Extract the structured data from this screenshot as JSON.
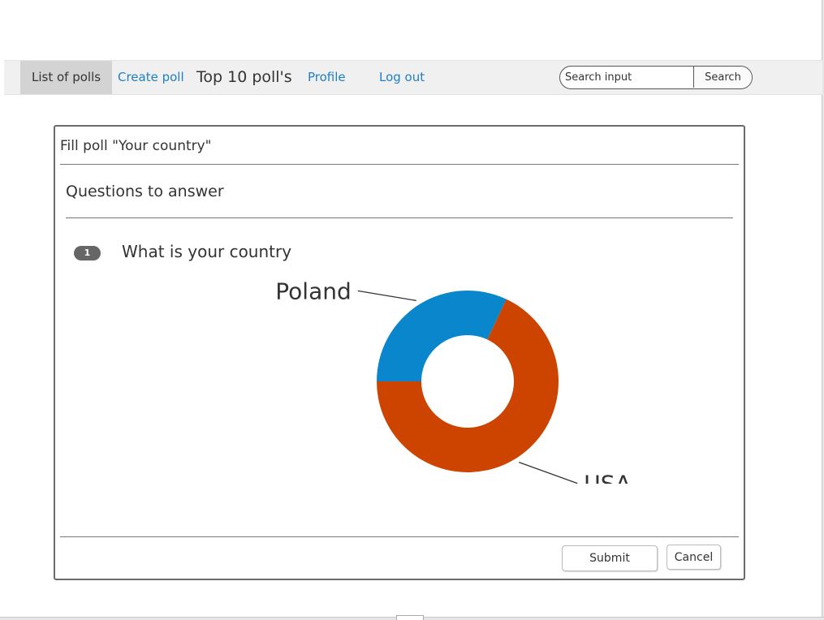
{
  "nav": {
    "items": [
      {
        "label": "List of polls",
        "state": "active"
      },
      {
        "label": "Create poll",
        "state": "link"
      },
      {
        "label": "Top 10 poll's",
        "state": "plain"
      },
      {
        "label": "Profile",
        "state": "link"
      },
      {
        "label": "Log out",
        "state": "link"
      }
    ],
    "search": {
      "placeholder": "Search input",
      "button_label": "Search"
    }
  },
  "panel": {
    "title": "Fill poll \"Your country\"",
    "section_title": "Questions to answer",
    "question": {
      "badge": "1",
      "text": "What is your country"
    },
    "buttons": {
      "submit_label": "Submit",
      "cancel_label": "Cancel"
    }
  },
  "chart_data": {
    "type": "pie",
    "donut": true,
    "slices": [
      {
        "label": "Poland",
        "value": 32,
        "color": "#0a86cc"
      },
      {
        "label": "USA",
        "value": 68,
        "color": "#cc4400"
      }
    ]
  }
}
